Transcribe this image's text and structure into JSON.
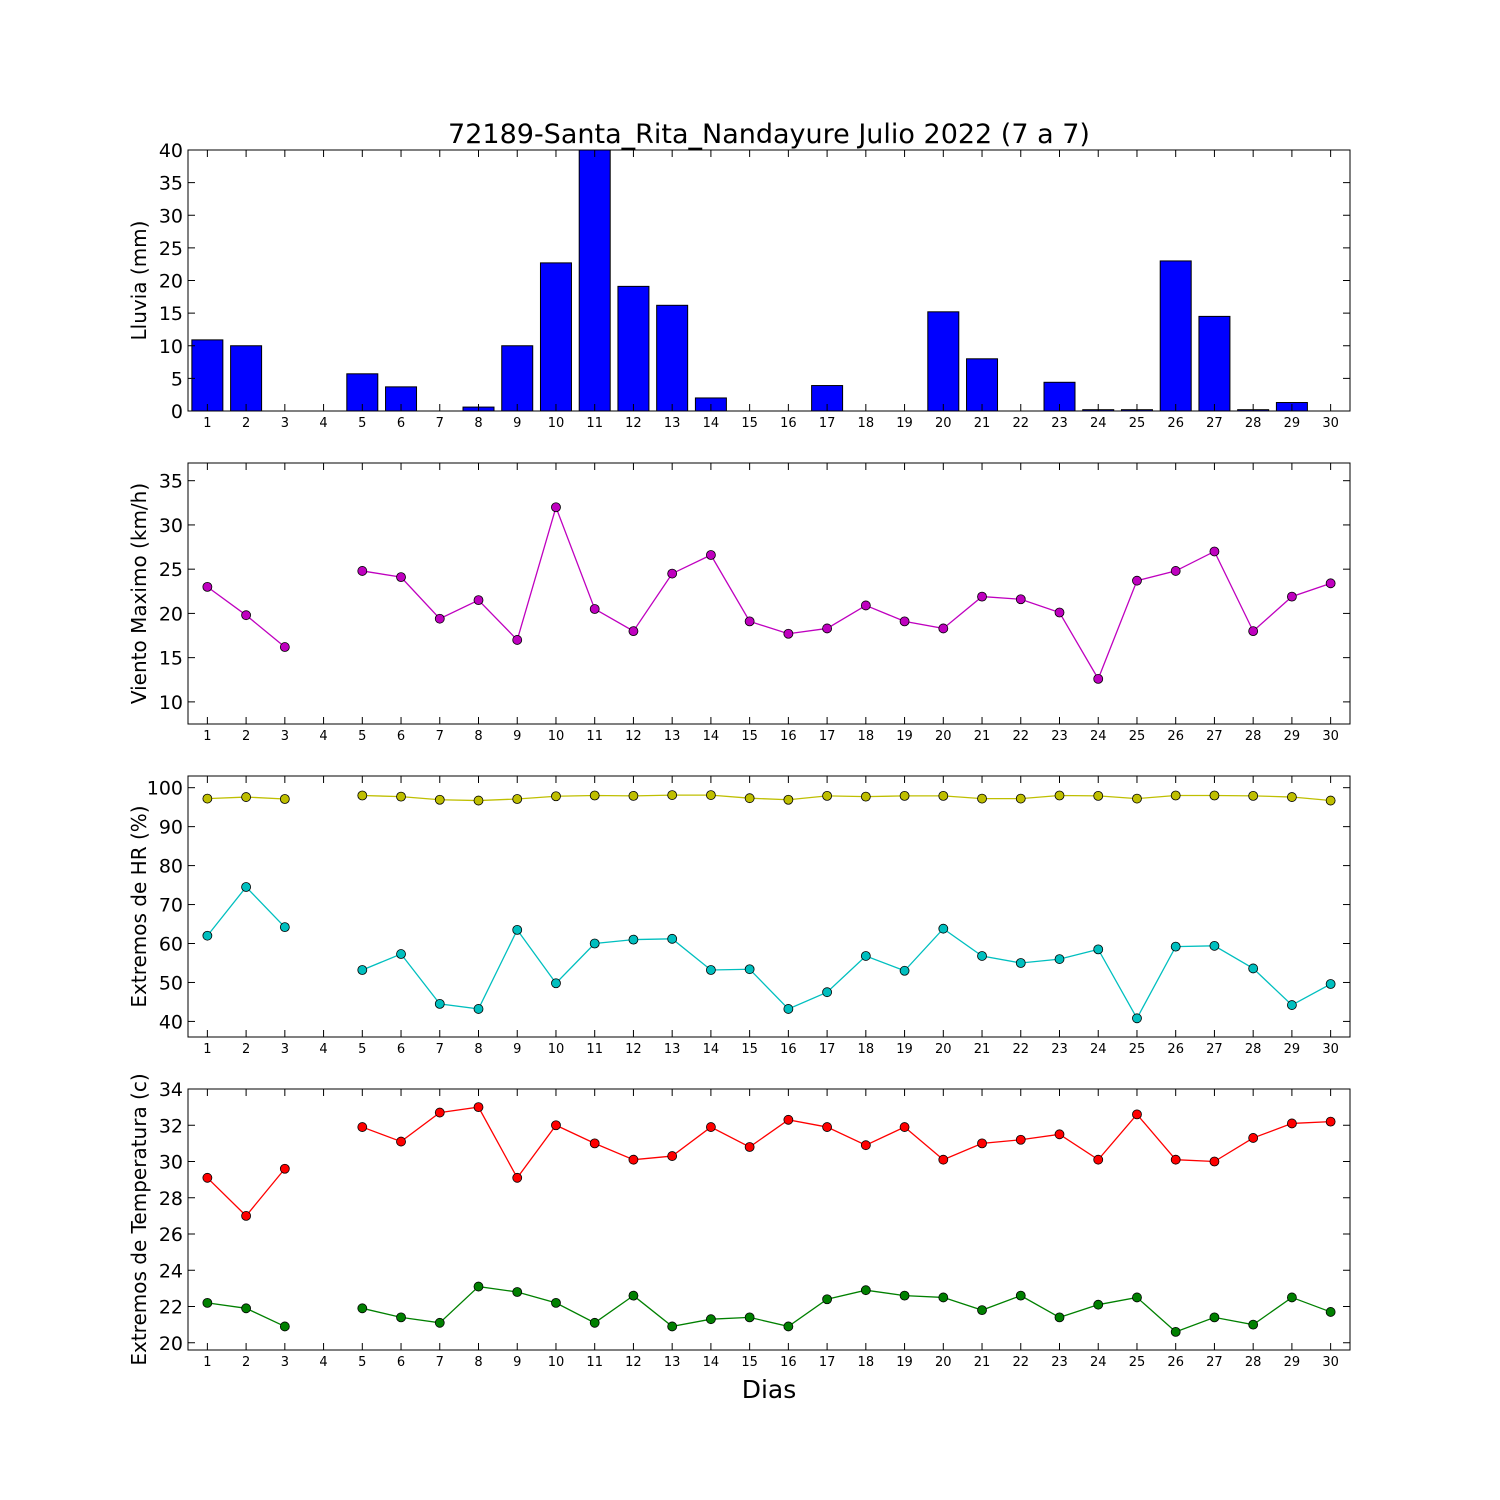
{
  "title": "72189-Santa_Rita_Nandayure Julio 2022  (7 a 7)",
  "xlabel": "Dias",
  "chart_data": [
    {
      "type": "bar",
      "ylabel": "Lluvia (mm)",
      "ylim": [
        0,
        40
      ],
      "yticks": [
        0,
        5,
        10,
        15,
        20,
        25,
        30,
        35,
        40
      ],
      "x": [
        1,
        2,
        3,
        4,
        5,
        6,
        7,
        8,
        9,
        10,
        11,
        12,
        13,
        14,
        15,
        16,
        17,
        18,
        19,
        20,
        21,
        22,
        23,
        24,
        25,
        26,
        27,
        28,
        29,
        30
      ],
      "series": [
        {
          "color": "#0000ff",
          "values": [
            10.9,
            10.0,
            0,
            0,
            5.7,
            3.7,
            0,
            0.6,
            10.0,
            22.7,
            40.0,
            19.1,
            16.2,
            2.0,
            0,
            0,
            3.9,
            0,
            0,
            15.2,
            8.0,
            0,
            4.4,
            0.2,
            0.2,
            23.0,
            14.5,
            0.2,
            1.3,
            0
          ]
        }
      ]
    },
    {
      "type": "line",
      "ylabel": "Viento Maximo (km/h)",
      "ylim": [
        7.5,
        37
      ],
      "yticks": [
        10,
        15,
        20,
        25,
        30,
        35
      ],
      "x": [
        1,
        2,
        3,
        4,
        5,
        6,
        7,
        8,
        9,
        10,
        11,
        12,
        13,
        14,
        15,
        16,
        17,
        18,
        19,
        20,
        21,
        22,
        23,
        24,
        25,
        26,
        27,
        28,
        29,
        30
      ],
      "series": [
        {
          "color": "#bf00bf",
          "values": [
            23.0,
            19.8,
            16.2,
            null,
            24.8,
            24.1,
            19.4,
            21.5,
            17.0,
            32.0,
            20.5,
            18.0,
            24.5,
            26.6,
            19.1,
            17.7,
            18.3,
            20.9,
            19.1,
            18.3,
            21.9,
            21.6,
            20.1,
            12.6,
            23.7,
            24.8,
            27.0,
            18.0,
            21.9,
            23.4
          ]
        }
      ]
    },
    {
      "type": "line",
      "ylabel": "Extremos de HR (%)",
      "ylim": [
        36,
        103
      ],
      "yticks": [
        40,
        50,
        60,
        70,
        80,
        90,
        100
      ],
      "x": [
        1,
        2,
        3,
        4,
        5,
        6,
        7,
        8,
        9,
        10,
        11,
        12,
        13,
        14,
        15,
        16,
        17,
        18,
        19,
        20,
        21,
        22,
        23,
        24,
        25,
        26,
        27,
        28,
        29,
        30
      ],
      "series": [
        {
          "color": "#bfbf00",
          "values": [
            97.2,
            97.6,
            97.1,
            null,
            98.0,
            97.7,
            96.9,
            96.7,
            97.1,
            97.8,
            98.0,
            97.9,
            98.1,
            98.1,
            97.3,
            96.9,
            97.9,
            97.7,
            97.9,
            97.9,
            97.2,
            97.2,
            98.0,
            97.9,
            97.2,
            98.0,
            98.0,
            97.9,
            97.6,
            96.7
          ]
        },
        {
          "color": "#00bfbf",
          "values": [
            62.0,
            74.5,
            64.2,
            null,
            53.2,
            57.3,
            44.5,
            43.2,
            63.5,
            49.8,
            60.0,
            61.0,
            61.2,
            53.2,
            53.4,
            43.2,
            47.5,
            56.8,
            53.0,
            63.8,
            56.8,
            55.0,
            56.0,
            58.5,
            40.8,
            59.2,
            59.4,
            53.6,
            44.2,
            49.6
          ]
        }
      ]
    },
    {
      "type": "line",
      "ylabel": "Extremos de Temperatura (c)",
      "ylim": [
        19.6,
        34
      ],
      "yticks": [
        20,
        22,
        24,
        26,
        28,
        30,
        32,
        34
      ],
      "x": [
        1,
        2,
        3,
        4,
        5,
        6,
        7,
        8,
        9,
        10,
        11,
        12,
        13,
        14,
        15,
        16,
        17,
        18,
        19,
        20,
        21,
        22,
        23,
        24,
        25,
        26,
        27,
        28,
        29,
        30
      ],
      "series": [
        {
          "color": "#ff0000",
          "values": [
            29.1,
            27.0,
            29.6,
            null,
            31.9,
            31.1,
            32.7,
            33.0,
            29.1,
            32.0,
            31.0,
            30.1,
            30.3,
            31.9,
            30.8,
            32.3,
            31.9,
            30.9,
            31.9,
            30.1,
            31.0,
            31.2,
            31.5,
            30.1,
            32.6,
            30.1,
            30.0,
            31.3,
            32.1,
            32.2
          ]
        },
        {
          "color": "#008000",
          "values": [
            22.2,
            21.9,
            20.9,
            null,
            21.9,
            21.4,
            21.1,
            23.1,
            22.8,
            22.2,
            21.1,
            22.6,
            20.9,
            21.3,
            21.4,
            20.9,
            22.4,
            22.9,
            22.6,
            22.5,
            21.8,
            22.6,
            21.4,
            22.1,
            22.5,
            20.6,
            21.4,
            21.0,
            22.5,
            21.7
          ]
        }
      ]
    }
  ]
}
